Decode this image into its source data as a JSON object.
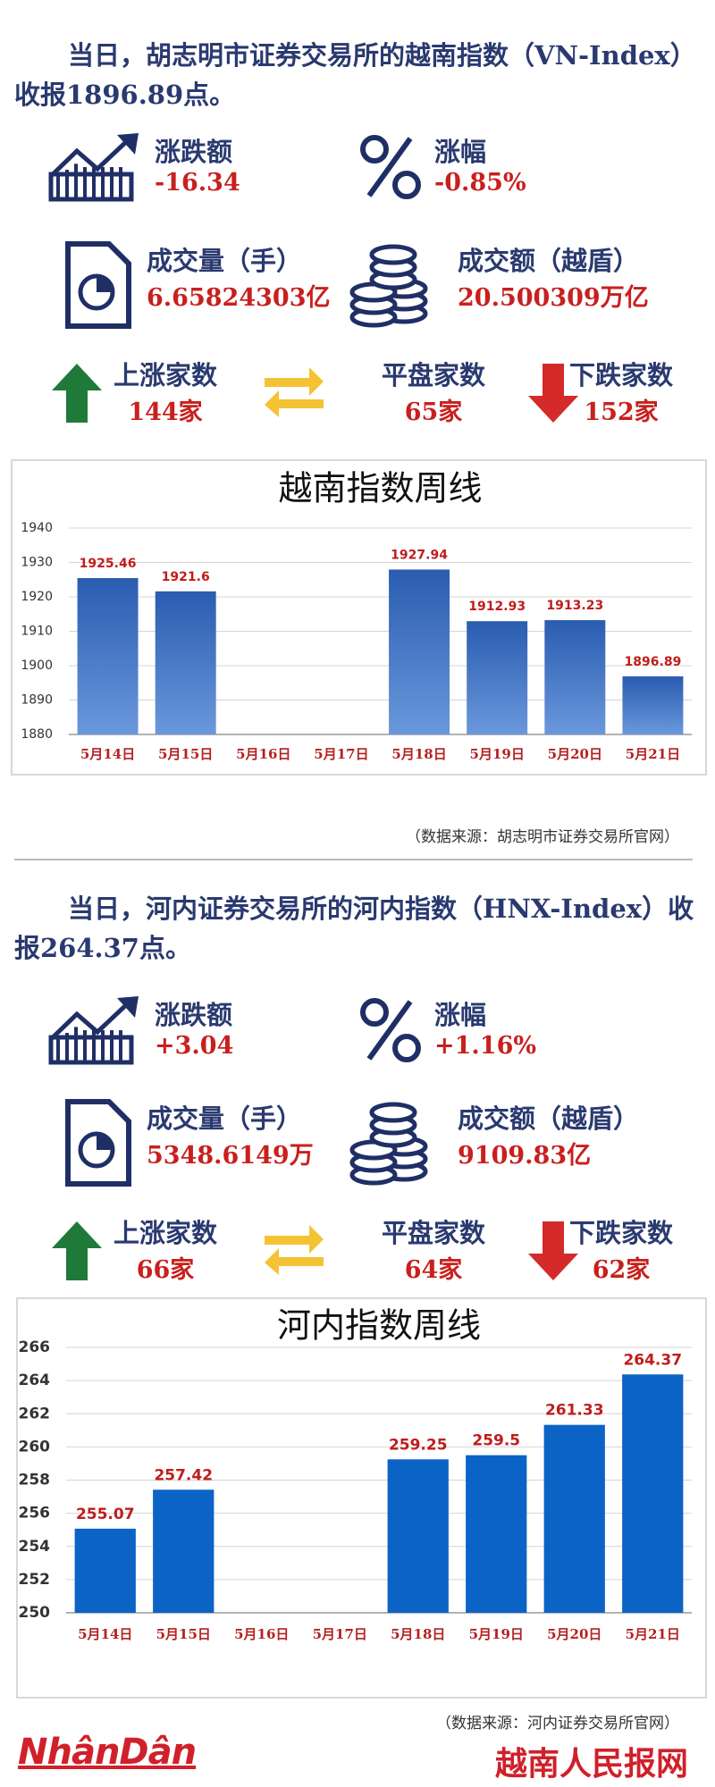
{
  "sections": [
    {
      "headline": "当日，胡志明市证券交易所的越南指数（VN-Index）收报1896.89点。",
      "stats": [
        {
          "label": "涨跌额",
          "value": "-16.34"
        },
        {
          "label": "涨幅",
          "value": "-0.85%"
        },
        {
          "label": "成交量（手）",
          "value": "6.65824303亿"
        },
        {
          "label": "成交额（越盾）",
          "value": "20.500309万亿"
        },
        {
          "label": "上涨家数",
          "value": "144家"
        },
        {
          "label": "平盘家数",
          "value": "65家"
        },
        {
          "label": "下跌家数",
          "value": "152家"
        }
      ],
      "source": "（数据来源：胡志明市证券交易所官网）"
    },
    {
      "headline": "当日，河内证券交易所的河内指数（HNX-Index）收报264.37点。",
      "stats": [
        {
          "label": "涨跌额",
          "value": "+3.04"
        },
        {
          "label": "涨幅",
          "value": "+1.16%"
        },
        {
          "label": "成交量（手）",
          "value": "5348.6149万"
        },
        {
          "label": "成交额（越盾）",
          "value": "9109.83亿"
        },
        {
          "label": "上涨家数",
          "value": "66家"
        },
        {
          "label": "平盘家数",
          "value": "64家"
        },
        {
          "label": "下跌家数",
          "value": "62家"
        }
      ],
      "source": "（数据来源：河内证券交易所官网）"
    }
  ],
  "chart_data": [
    {
      "type": "bar",
      "title": "越南指数周线",
      "categories": [
        "5月14日",
        "5月15日",
        "5月16日",
        "5月17日",
        "5月18日",
        "5月19日",
        "5月20日",
        "5月21日"
      ],
      "values": [
        1925.46,
        1921.6,
        null,
        null,
        1927.94,
        1912.93,
        1913.23,
        1896.89
      ],
      "color": "#2f62b4",
      "ylim": [
        1880,
        1940
      ],
      "yticks": [
        1880,
        1890,
        1900,
        1910,
        1920,
        1930,
        1940
      ],
      "grid": true
    },
    {
      "type": "bar",
      "title": "河内指数周线",
      "categories": [
        "5月14日",
        "5月15日",
        "5月16日",
        "5月17日",
        "5月18日",
        "5月19日",
        "5月20日",
        "5月21日"
      ],
      "values": [
        255.07,
        257.42,
        null,
        null,
        259.25,
        259.5,
        261.33,
        264.37
      ],
      "color": "#0b63c5",
      "ylim": [
        250,
        266
      ],
      "yticks": [
        250,
        252,
        254,
        256,
        258,
        260,
        262,
        264,
        266
      ],
      "grid": true
    }
  ],
  "footer": {
    "logo": "NhânDân",
    "site": "越南人民报网"
  }
}
